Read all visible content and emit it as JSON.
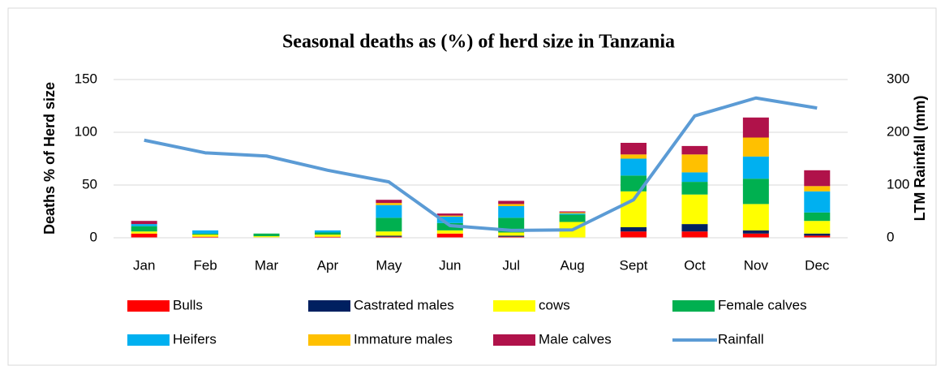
{
  "chart_data": {
    "type": "bar",
    "title": "Seasonal deaths as (%) of herd size in Tanzania",
    "y_label": "Deaths % of Herd size",
    "y2_label": "LTM Rainfall (mm)",
    "categories": [
      "Jan",
      "Feb",
      "Mar",
      "Apr",
      "May",
      "Jun",
      "Jul",
      "Aug",
      "Sept",
      "Oct",
      "Nov",
      "Dec"
    ],
    "stacked": true,
    "grid": true,
    "legend": "bottom",
    "ylim": [
      0,
      150
    ],
    "yticks": [
      0,
      50,
      100,
      150
    ],
    "y2lim": [
      0,
      300
    ],
    "y2ticks": [
      0,
      100,
      200,
      300
    ],
    "series": [
      {
        "name": "Bulls",
        "color": "#ff0000",
        "values": [
          4,
          1,
          0.5,
          1,
          1,
          4,
          1,
          0,
          6,
          6,
          4,
          2
        ]
      },
      {
        "name": "Castrated males",
        "color": "#002060",
        "values": [
          0,
          0,
          0,
          0,
          1,
          0,
          1,
          0,
          4,
          7,
          3,
          2
        ]
      },
      {
        "name": "cows",
        "color": "#ffff00",
        "values": [
          2,
          2,
          1,
          2,
          4,
          3,
          3,
          15,
          34,
          28,
          25,
          12
        ]
      },
      {
        "name": "Female calves",
        "color": "#00b050",
        "values": [
          5,
          1,
          2.5,
          2,
          13,
          7,
          14,
          7,
          15,
          12,
          24,
          8
        ]
      },
      {
        "name": "Heifers",
        "color": "#00b0f0",
        "values": [
          2,
          3,
          0,
          2,
          12,
          6,
          11,
          1,
          16,
          9,
          21,
          20
        ]
      },
      {
        "name": "Immature males",
        "color": "#ffc000",
        "values": [
          0,
          0,
          0,
          0,
          2,
          1,
          2,
          1,
          4,
          17,
          18,
          5
        ]
      },
      {
        "name": "Male calves",
        "color": "#b0124a",
        "values": [
          3,
          0,
          0,
          0,
          3,
          2,
          3,
          1,
          11,
          8,
          19,
          15
        ]
      },
      {
        "name": "Rainfall",
        "color": "#5b9bd5",
        "type": "line",
        "axis": "y2",
        "values": [
          185,
          161,
          155,
          128,
          106,
          23,
          14,
          15,
          72,
          231,
          265,
          246
        ]
      }
    ]
  }
}
